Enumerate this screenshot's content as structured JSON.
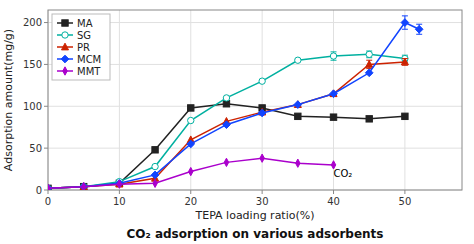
{
  "chart_data": {
    "type": "line",
    "title": "CO₂ adsorption on various adsorbents",
    "xlabel": "TEPA loading ratio(%)",
    "ylabel": "Adsorption amount(mg/g)",
    "xlim": [
      0,
      58
    ],
    "ylim": [
      0,
      215
    ],
    "xticks": [
      0,
      10,
      20,
      30,
      40,
      50
    ],
    "yticks": [
      0,
      50,
      100,
      150,
      200
    ],
    "grid": true,
    "legend": "upper-left",
    "annotations": [
      {
        "text": "CO₂",
        "x": 40,
        "y": 16
      }
    ],
    "series": [
      {
        "name": "MA",
        "color": "#222222",
        "marker": "square",
        "x": [
          0,
          5,
          10,
          15,
          20,
          25,
          30,
          35,
          40,
          45,
          50
        ],
        "values": [
          2,
          4,
          8,
          48,
          98,
          103,
          98,
          88,
          87,
          85,
          88
        ],
        "errors": [
          null,
          null,
          null,
          null,
          null,
          null,
          null,
          null,
          null,
          null,
          null
        ]
      },
      {
        "name": "SG",
        "color": "#00b0a0",
        "marker": "open-circle",
        "x": [
          0,
          5,
          10,
          15,
          20,
          25,
          30,
          35,
          40,
          45,
          50
        ],
        "values": [
          2,
          4,
          10,
          28,
          83,
          110,
          130,
          155,
          160,
          162,
          157
        ],
        "errors": [
          null,
          null,
          null,
          null,
          null,
          null,
          null,
          null,
          5,
          4,
          4
        ]
      },
      {
        "name": "PR",
        "color": "#cc2200",
        "marker": "triangle",
        "x": [
          0,
          5,
          10,
          15,
          20,
          25,
          30,
          35,
          40,
          45,
          50
        ],
        "values": [
          2,
          4,
          7,
          14,
          60,
          82,
          93,
          102,
          115,
          150,
          153
        ],
        "errors": [
          null,
          null,
          null,
          null,
          null,
          null,
          null,
          null,
          null,
          5,
          4
        ]
      },
      {
        "name": "MCM",
        "color": "#1144ff",
        "marker": "diamond",
        "x": [
          0,
          5,
          10,
          15,
          20,
          25,
          30,
          35,
          40,
          45,
          50,
          52
        ],
        "values": [
          2,
          4,
          8,
          18,
          55,
          78,
          92,
          102,
          115,
          140,
          200,
          192
        ],
        "errors": [
          null,
          null,
          null,
          null,
          null,
          null,
          null,
          null,
          null,
          null,
          8,
          6
        ]
      },
      {
        "name": "MMT",
        "color": "#aa00cc",
        "marker": "thin-diamond",
        "x": [
          0,
          5,
          10,
          15,
          20,
          25,
          30,
          35,
          40
        ],
        "values": [
          2,
          4,
          7,
          8,
          22,
          33,
          38,
          32,
          30
        ],
        "errors": [
          null,
          null,
          null,
          null,
          null,
          null,
          null,
          null,
          null
        ]
      }
    ]
  }
}
